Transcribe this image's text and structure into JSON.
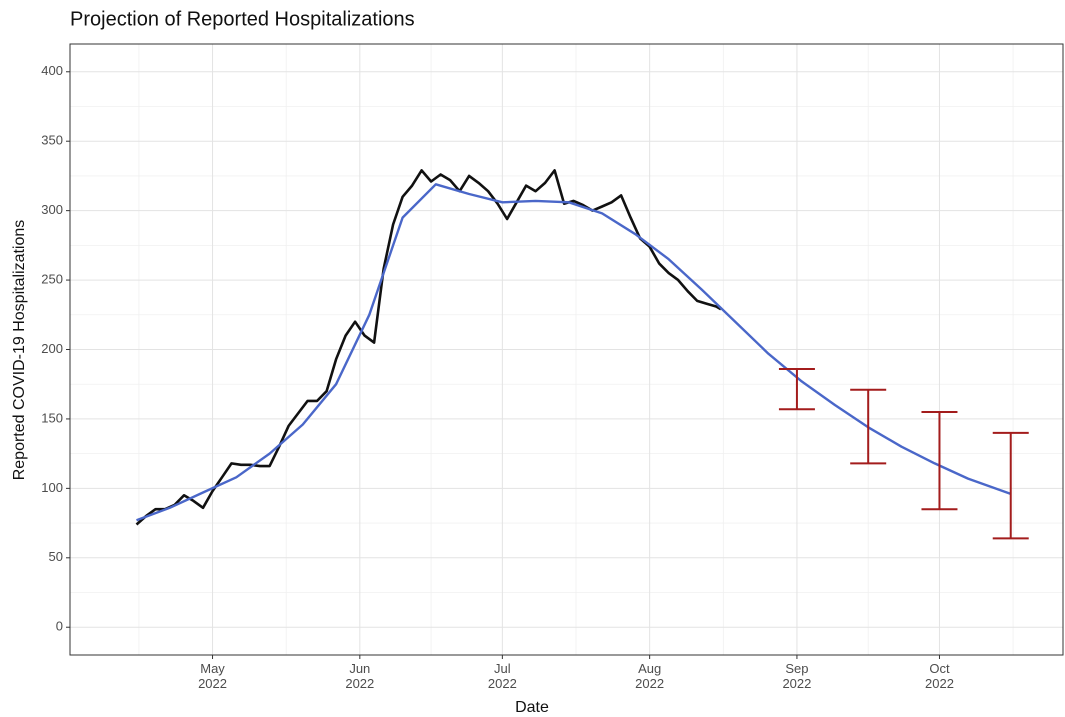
{
  "chart_data": {
    "type": "line",
    "title": "Projection of Reported Hospitalizations",
    "x_label": "Date",
    "y_label": "Reported COVID-19 Hospitalizations",
    "xlim": [
      "2022-04-01",
      "2022-10-27"
    ],
    "ylim": [
      -20,
      420
    ],
    "yticks": [
      0,
      50,
      100,
      150,
      200,
      250,
      300,
      350,
      400
    ],
    "xticks": [
      {
        "value": "2022-05-01",
        "label": "May\n2022"
      },
      {
        "value": "2022-06-01",
        "label": "Jun\n2022"
      },
      {
        "value": "2022-07-01",
        "label": "Jul\n2022"
      },
      {
        "value": "2022-08-01",
        "label": "Aug\n2022"
      },
      {
        "value": "2022-09-01",
        "label": "Sep\n2022"
      },
      {
        "value": "2022-10-01",
        "label": "Oct\n2022"
      }
    ],
    "grid": true,
    "series": [
      {
        "color": "#111111",
        "x": [
          "2022-04-15",
          "2022-04-17",
          "2022-04-19",
          "2022-04-21",
          "2022-04-23",
          "2022-04-25",
          "2022-04-27",
          "2022-04-29",
          "2022-05-01",
          "2022-05-03",
          "2022-05-05",
          "2022-05-07",
          "2022-05-09",
          "2022-05-11",
          "2022-05-13",
          "2022-05-15",
          "2022-05-17",
          "2022-05-19",
          "2022-05-21",
          "2022-05-23",
          "2022-05-25",
          "2022-05-27",
          "2022-05-29",
          "2022-05-31",
          "2022-06-02",
          "2022-06-04",
          "2022-06-06",
          "2022-06-08",
          "2022-06-10",
          "2022-06-12",
          "2022-06-14",
          "2022-06-16",
          "2022-06-18",
          "2022-06-20",
          "2022-06-22",
          "2022-06-24",
          "2022-06-26",
          "2022-06-28",
          "2022-06-30",
          "2022-07-02",
          "2022-07-04",
          "2022-07-06",
          "2022-07-08",
          "2022-07-10",
          "2022-07-12",
          "2022-07-14",
          "2022-07-16",
          "2022-07-18",
          "2022-07-20",
          "2022-07-22",
          "2022-07-24",
          "2022-07-26",
          "2022-07-28",
          "2022-07-30",
          "2022-08-01",
          "2022-08-03",
          "2022-08-05",
          "2022-08-07",
          "2022-08-09",
          "2022-08-11",
          "2022-08-13",
          "2022-08-15",
          "2022-08-16"
        ],
        "values": [
          74,
          80,
          85,
          85,
          88,
          95,
          91,
          86,
          98,
          108,
          118,
          117,
          117,
          116,
          116,
          130,
          145,
          154,
          163,
          163,
          170,
          193,
          210,
          220,
          210,
          205,
          258,
          290,
          310,
          318,
          329,
          321,
          326,
          322,
          314,
          325,
          320,
          314,
          305,
          294,
          306,
          318,
          314,
          320,
          329,
          305,
          307,
          304,
          300,
          303,
          306,
          311,
          295,
          280,
          274,
          262,
          255,
          250,
          242,
          235,
          233,
          231,
          229
        ]
      },
      {
        "color": "#4a67c9",
        "x": [
          "2022-04-15",
          "2022-04-22",
          "2022-04-29",
          "2022-05-06",
          "2022-05-13",
          "2022-05-20",
          "2022-05-27",
          "2022-06-03",
          "2022-06-10",
          "2022-06-17",
          "2022-06-24",
          "2022-07-01",
          "2022-07-08",
          "2022-07-15",
          "2022-07-22",
          "2022-07-29",
          "2022-08-05",
          "2022-08-12",
          "2022-08-19",
          "2022-08-26",
          "2022-09-02",
          "2022-09-09",
          "2022-09-16",
          "2022-09-23",
          "2022-09-30",
          "2022-10-07",
          "2022-10-16"
        ],
        "values": [
          77,
          86,
          97,
          108,
          125,
          146,
          175,
          225,
          295,
          319,
          312,
          306,
          307,
          306,
          298,
          283,
          265,
          243,
          220,
          197,
          177,
          160,
          144,
          130,
          118,
          107,
          96
        ]
      }
    ],
    "error_bars": {
      "color": "#a31c1c",
      "x": [
        "2022-09-01",
        "2022-09-16",
        "2022-10-01",
        "2022-10-16"
      ],
      "lower": [
        157,
        118,
        85,
        64
      ],
      "upper": [
        186,
        171,
        155,
        140
      ]
    }
  }
}
